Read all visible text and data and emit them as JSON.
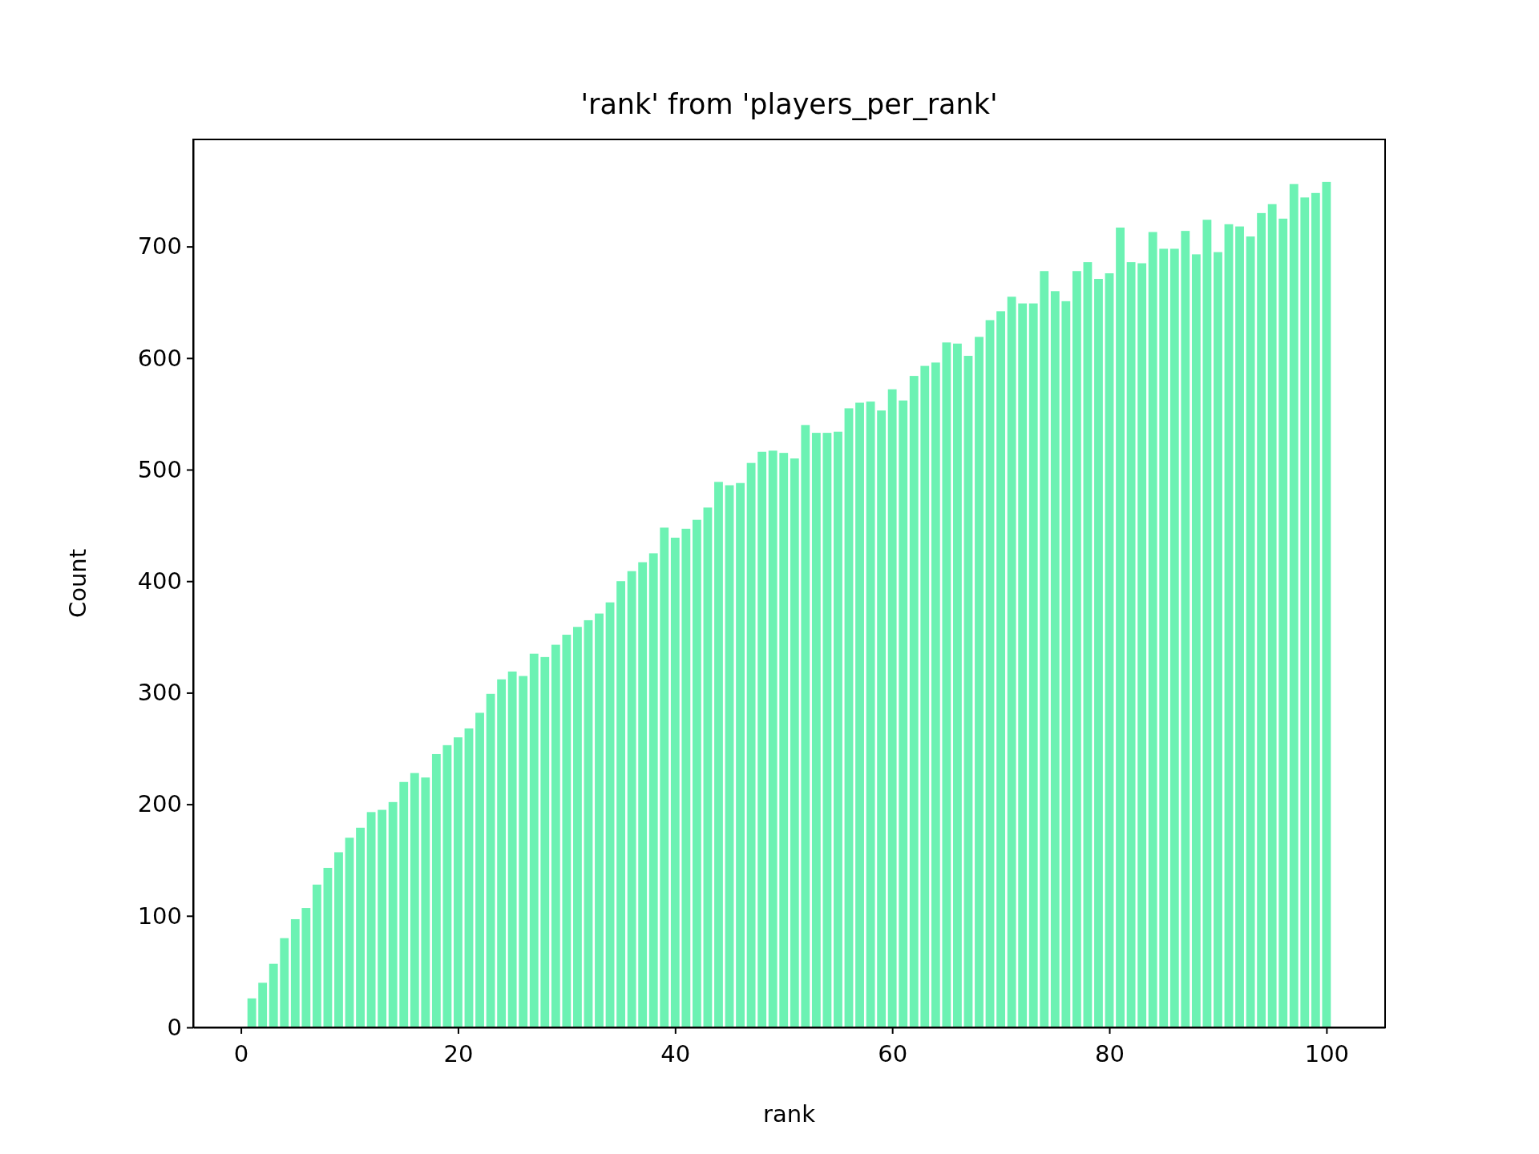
{
  "chart_data": {
    "type": "bar",
    "title": "'rank' from 'players_per_rank'",
    "xlabel": "rank",
    "ylabel": "Count",
    "x": [
      1,
      2,
      3,
      4,
      5,
      6,
      7,
      8,
      9,
      10,
      11,
      12,
      13,
      14,
      15,
      16,
      17,
      18,
      19,
      20,
      21,
      22,
      23,
      24,
      25,
      26,
      27,
      28,
      29,
      30,
      31,
      32,
      33,
      34,
      35,
      36,
      37,
      38,
      39,
      40,
      41,
      42,
      43,
      44,
      45,
      46,
      47,
      48,
      49,
      50,
      51,
      52,
      53,
      54,
      55,
      56,
      57,
      58,
      59,
      60,
      61,
      62,
      63,
      64,
      65,
      66,
      67,
      68,
      69,
      70,
      71,
      72,
      73,
      74,
      75,
      76,
      77,
      78,
      79,
      80,
      81,
      82,
      83,
      84,
      85,
      86,
      87,
      88,
      89,
      90,
      91,
      92,
      93,
      94,
      95,
      96,
      97,
      98,
      99,
      100
    ],
    "values": [
      26,
      40,
      57,
      80,
      97,
      107,
      128,
      143,
      157,
      170,
      179,
      193,
      195,
      202,
      220,
      228,
      224,
      245,
      253,
      260,
      268,
      282,
      299,
      312,
      319,
      315,
      335,
      332,
      343,
      352,
      359,
      365,
      371,
      381,
      400,
      409,
      417,
      425,
      448,
      439,
      447,
      455,
      466,
      489,
      486,
      488,
      506,
      516,
      517,
      515,
      510,
      540,
      533,
      533,
      534,
      555,
      560,
      561,
      553,
      572,
      562,
      584,
      593,
      596,
      614,
      613,
      602,
      619,
      634,
      642,
      655,
      649,
      649,
      678,
      660,
      651,
      678,
      686,
      671,
      676,
      717,
      686,
      685,
      713,
      698,
      698,
      714,
      693,
      724,
      695,
      720,
      718,
      709,
      730,
      738,
      725,
      756,
      744,
      748,
      758
    ],
    "color": "#6cf2b3",
    "xlim": [
      -4.4,
      105.4
    ],
    "xticks": [
      0,
      20,
      40,
      60,
      80,
      100
    ],
    "ylim": [
      0,
      796
    ],
    "yticks": [
      0,
      100,
      200,
      300,
      400,
      500,
      600,
      700
    ],
    "grid": false
  }
}
